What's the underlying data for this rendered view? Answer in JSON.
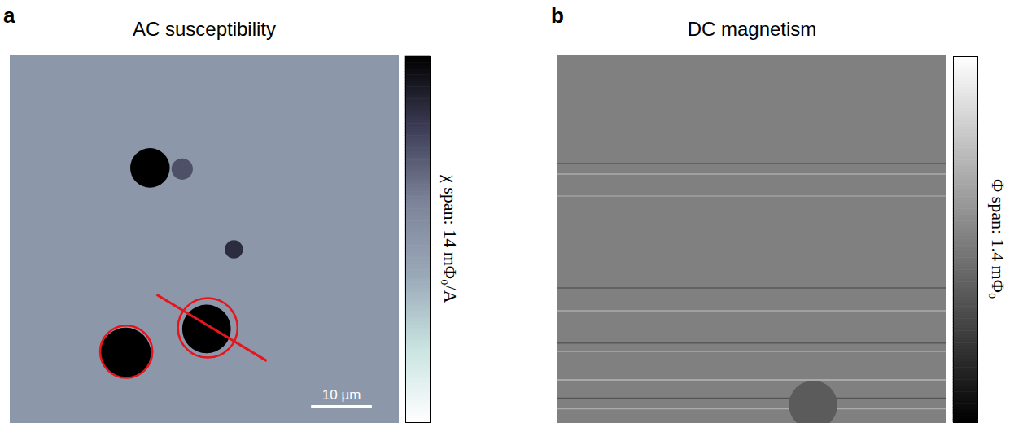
{
  "chart_data": [
    {
      "type": "heatmap",
      "panel": "a",
      "title": "AC susceptibility",
      "xlim": [
        0,
        64
      ],
      "ylim": [
        0,
        60
      ],
      "tick_labels": false,
      "background": 7,
      "spots": [
        {
          "x": 23,
          "y": 18.3,
          "diameter": 6.5,
          "value": 14
        },
        {
          "x": 28.3,
          "y": 18.5,
          "diameter": 3.5,
          "value": 10.5
        },
        {
          "x": 36.8,
          "y": 31.6,
          "diameter": 3,
          "value": 12
        },
        {
          "x": 19,
          "y": 48.5,
          "diameter": 8.3,
          "value": 14
        },
        {
          "x": 32.3,
          "y": 44.6,
          "diameter": 8,
          "value": 14
        }
      ],
      "streaks": [],
      "colorbar": {
        "label": "χ span: 14 mΦ₀/A",
        "range": [
          0,
          14
        ],
        "colors": [
          "#ffffff",
          "#c9e4e1",
          "#9aa9b8",
          "#7d8499",
          "#3e3e58",
          "#000000"
        ]
      },
      "scale_bar": {
        "length": 10,
        "label": "10 µm"
      },
      "annotations": {
        "color": "#e8141c",
        "circles": [
          {
            "x": 19.1,
            "y": 48.3,
            "radius": 4.3
          },
          {
            "x": 32.5,
            "y": 44.4,
            "radius": 4.9
          }
        ],
        "lines": [
          {
            "x1": 24.1,
            "y1": 39.0,
            "x2": 42.2,
            "y2": 49.8
          }
        ]
      }
    },
    {
      "type": "heatmap",
      "panel": "b",
      "title": "DC magnetism",
      "xlim": [
        0,
        64
      ],
      "ylim": [
        0,
        60
      ],
      "tick_labels": false,
      "background": 0.7,
      "spots": [
        {
          "x": 42,
          "y": 57,
          "diameter": 8,
          "value": 0.5
        }
      ],
      "streaks": [
        {
          "y": 17.6,
          "value": 0.35
        },
        {
          "y": 19.3,
          "value": 1.1
        },
        {
          "y": 22.9,
          "value": 1.0
        },
        {
          "y": 37.9,
          "value": 0.35
        },
        {
          "y": 41.6,
          "value": 1.1
        },
        {
          "y": 46.9,
          "value": 0.35
        },
        {
          "y": 48.3,
          "value": 1.0
        },
        {
          "y": 52.9,
          "value": 1.2
        },
        {
          "y": 55.9,
          "value": 0.3
        },
        {
          "y": 57.6,
          "value": 1.1
        }
      ],
      "colorbar": {
        "label": "Φ span: 1.4 mΦ₀",
        "range": [
          0,
          1.4
        ],
        "colors": [
          "#000000",
          "#ffffff"
        ]
      }
    }
  ]
}
